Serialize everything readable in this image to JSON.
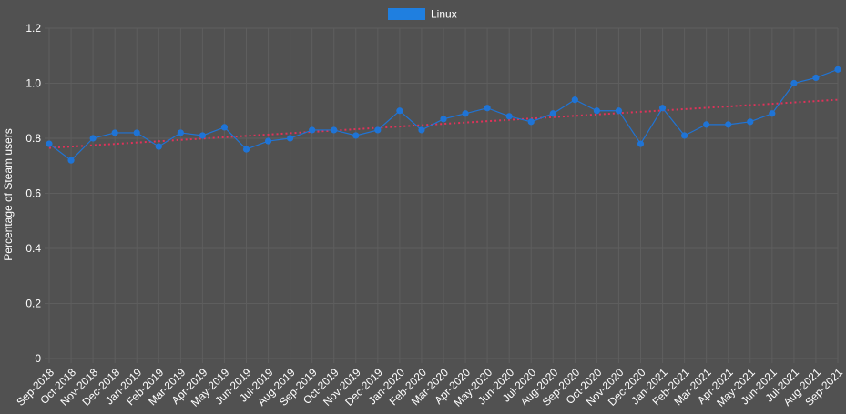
{
  "theme": {
    "background": "#515151",
    "grid_color": "#5e5e5e",
    "text_color": "#ffffff",
    "series_color": "#1f74d6",
    "legend_box_color": "#1f7fe0",
    "trend_color": "#e0325a"
  },
  "chart_data": {
    "type": "line",
    "title": "",
    "xlabel": "",
    "ylabel": "Percentage of Steam users",
    "ylim": [
      0,
      1.2
    ],
    "yticks": [
      "0",
      "0.2",
      "0.4",
      "0.6",
      "0.8",
      "1.0",
      "1.2"
    ],
    "ytick_values": [
      0,
      0.2,
      0.4,
      0.6,
      0.8,
      1.0,
      1.2
    ],
    "grid": true,
    "legend_position": "top-center",
    "categories": [
      "Sep-2018",
      "Oct-2018",
      "Nov-2018",
      "Dec-2018",
      "Jan-2019",
      "Feb-2019",
      "Mar-2019",
      "Apr-2019",
      "May-2019",
      "Jun-2019",
      "Jul-2019",
      "Aug-2019",
      "Sep-2019",
      "Oct-2019",
      "Nov-2019",
      "Dec-2019",
      "Jan-2020",
      "Feb-2020",
      "Mar-2020",
      "Apr-2020",
      "May-2020",
      "Jun-2020",
      "Jul-2020",
      "Aug-2020",
      "Sep-2020",
      "Oct-2020",
      "Nov-2020",
      "Dec-2020",
      "Jan-2021",
      "Feb-2021",
      "Mar-2021",
      "Apr-2021",
      "May-2021",
      "Jun-2021",
      "Jul-2021",
      "Aug-2021",
      "Sep-2021"
    ],
    "series": [
      {
        "name": "Linux",
        "values": [
          0.78,
          0.72,
          0.8,
          0.82,
          0.82,
          0.77,
          0.82,
          0.81,
          0.84,
          0.76,
          0.79,
          0.8,
          0.83,
          0.83,
          0.81,
          0.83,
          0.9,
          0.83,
          0.87,
          0.89,
          0.91,
          0.88,
          0.86,
          0.89,
          0.94,
          0.9,
          0.9,
          0.78,
          0.91,
          0.81,
          0.85,
          0.85,
          0.86,
          0.89,
          1.0,
          1.02,
          1.05
        ]
      }
    ],
    "trendline": {
      "start": 0.765,
      "end": 0.94
    }
  }
}
